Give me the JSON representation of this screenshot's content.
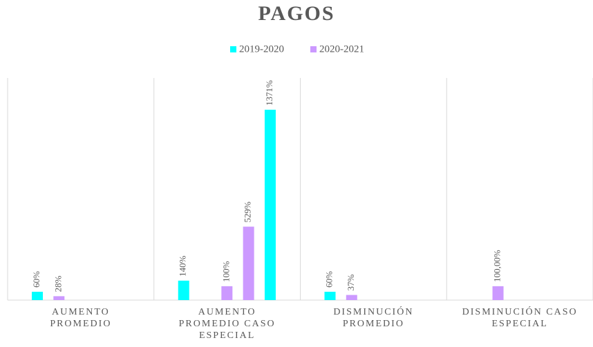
{
  "chart_data": {
    "type": "bar",
    "title": "PAGOS",
    "categories": [
      "AUMENTO PROMEDIO",
      "AUMENTO PROMEDIO CASO ESPECIAL",
      "DISMINUCIÓN PROMEDIO",
      "DISMINUCIÓN CASO ESPECIAL"
    ],
    "series": [
      {
        "name": "2019-2020",
        "color": "#00ffff",
        "values": [
          60,
          140,
          60,
          null
        ],
        "value_labels": [
          "60%",
          "140%",
          "60%",
          null
        ]
      },
      {
        "name": "2020-2021",
        "color": "#cc99ff",
        "values": [
          28,
          null,
          37,
          100
        ],
        "value_labels": [
          "28%",
          null,
          "37%",
          "100,00%"
        ]
      },
      {
        "color": "#cc99ff",
        "values": [
          null,
          100,
          null,
          null
        ],
        "value_labels": [
          null,
          "100%",
          null,
          null
        ]
      },
      {
        "color": "#cc99ff",
        "values": [
          null,
          529,
          null,
          null
        ],
        "value_labels": [
          null,
          "529%",
          null,
          null
        ]
      },
      {
        "color": "#00ffff",
        "values": [
          null,
          1371,
          null,
          null
        ],
        "value_labels": [
          null,
          "1371%",
          null,
          null
        ]
      }
    ],
    "ylim": [
      0,
      1600
    ],
    "legend": "top"
  }
}
